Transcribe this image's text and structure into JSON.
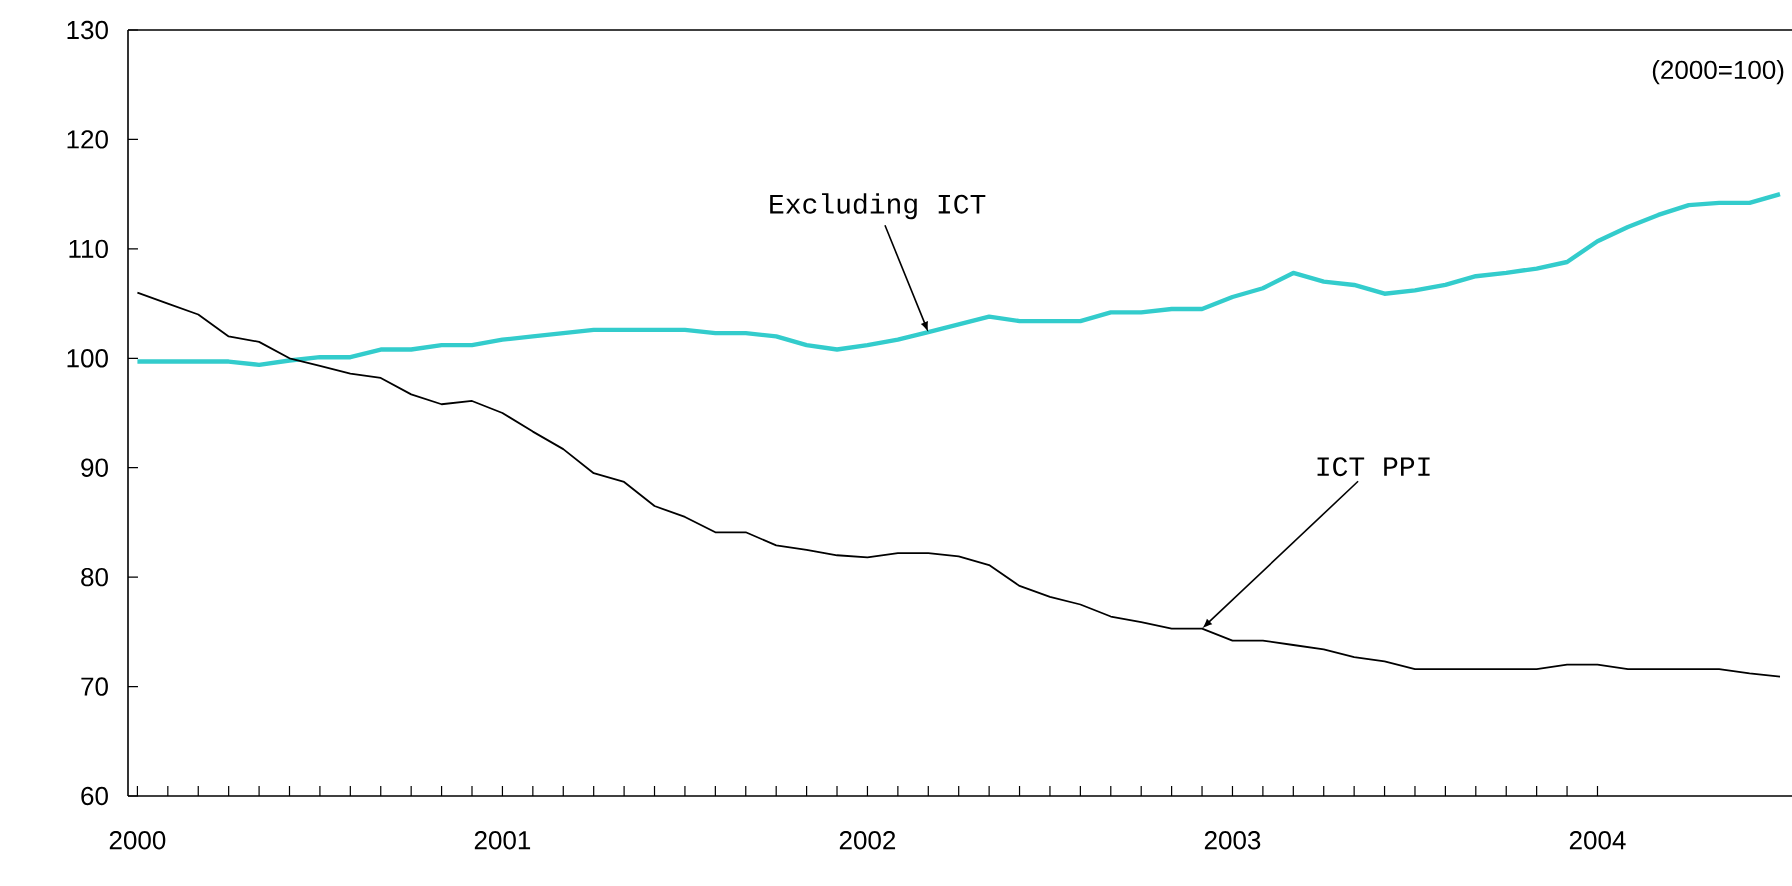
{
  "chart_data": {
    "type": "line",
    "annotations": [
      "(2000=100)",
      {
        "text": "Excluding ICT",
        "x": "2002-03",
        "y": 102.4
      },
      {
        "text": "ICT PPI",
        "x": "2002-12",
        "y": 75.3
      }
    ],
    "x": [
      "2000-01",
      "2000-02",
      "2000-03",
      "2000-04",
      "2000-05",
      "2000-06",
      "2000-07",
      "2000-08",
      "2000-09",
      "2000-10",
      "2000-11",
      "2000-12",
      "2001-01",
      "2001-02",
      "2001-03",
      "2001-04",
      "2001-05",
      "2001-06",
      "2001-07",
      "2001-08",
      "2001-09",
      "2001-10",
      "2001-11",
      "2001-12",
      "2002-01",
      "2002-02",
      "2002-03",
      "2002-04",
      "2002-05",
      "2002-06",
      "2002-07",
      "2002-08",
      "2002-09",
      "2002-10",
      "2002-11",
      "2002-12",
      "2003-01",
      "2003-02",
      "2003-03",
      "2003-04",
      "2003-05",
      "2003-06",
      "2003-07",
      "2003-08",
      "2003-09",
      "2003-10",
      "2003-11",
      "2003-12",
      "2004-01",
      "2004-02",
      "2004-03",
      "2004-04",
      "2004-05",
      "2004-06",
      "2004-07"
    ],
    "series": [
      {
        "color": "#33cccc",
        "values": [
          99.7,
          99.7,
          99.7,
          99.7,
          99.4,
          99.8,
          100.1,
          100.1,
          100.8,
          100.8,
          101.2,
          101.2,
          101.7,
          102.0,
          102.3,
          102.6,
          102.6,
          102.6,
          102.6,
          102.3,
          102.3,
          102.0,
          101.2,
          100.8,
          101.2,
          101.7,
          102.4,
          103.1,
          103.8,
          103.4,
          103.4,
          103.4,
          104.2,
          104.2,
          104.5,
          104.5,
          105.6,
          106.4,
          107.8,
          107.0,
          106.7,
          105.9,
          106.2,
          106.7,
          107.5,
          107.8,
          108.2,
          108.8,
          110.7,
          112.0,
          113.1,
          114.0,
          114.2,
          114.2,
          115.0
        ]
      },
      {
        "color": "#000000",
        "values": [
          106.0,
          105.0,
          104.0,
          102.0,
          101.5,
          100.0,
          99.3,
          98.6,
          98.2,
          96.7,
          95.8,
          96.1,
          95.0,
          93.3,
          91.7,
          89.5,
          88.7,
          86.5,
          85.5,
          84.1,
          84.1,
          82.9,
          82.5,
          82.0,
          81.8,
          82.2,
          82.2,
          81.9,
          81.1,
          79.2,
          78.2,
          77.5,
          76.4,
          75.9,
          75.3,
          75.3,
          74.2,
          74.2,
          73.8,
          73.4,
          72.7,
          72.3,
          71.6,
          71.6,
          71.6,
          71.6,
          71.6,
          72.0,
          72.0,
          71.6,
          71.6,
          71.6,
          71.6,
          71.2,
          70.9
        ]
      }
    ],
    "xlim": [
      "1999-12-22",
      "2004-07-13"
    ],
    "xticks": [
      {
        "value": "2000",
        "label": "2000"
      },
      {
        "value": "2001",
        "label": "2001"
      },
      {
        "value": "2002",
        "label": "2002"
      },
      {
        "value": "2003",
        "label": "2003"
      },
      {
        "value": "2004",
        "label": "2004"
      }
    ],
    "ylim": [
      60,
      130
    ],
    "yticks": [
      60,
      70,
      80,
      90,
      100,
      110,
      120,
      130
    ],
    "grid": false,
    "legend": false,
    "marker": "none",
    "line_style": "solid"
  }
}
